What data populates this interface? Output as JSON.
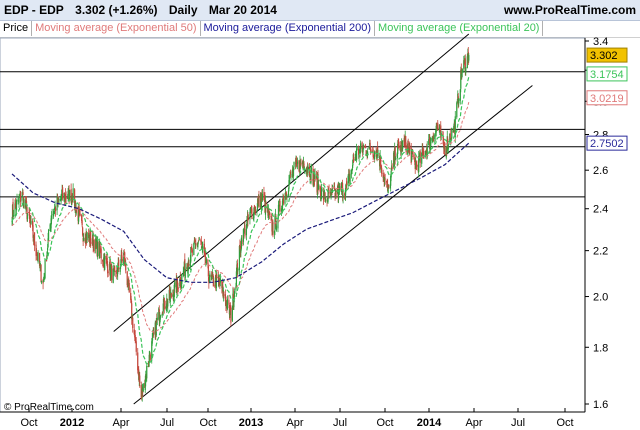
{
  "header": {
    "symbol": "EDP - EDP",
    "last": "3.302 (+1.26%)",
    "period": "Daily",
    "date": "Mar 20 2014",
    "brand": "www.ProRealTime.com"
  },
  "legend": {
    "price": "Price",
    "ema50": "Moving average (Exponential 50)",
    "ema200": "Moving average (Exponential 200)",
    "ema20": "Moving average (Exponential 20)"
  },
  "footer": {
    "credit": "© ProRealTime.com"
  },
  "colors": {
    "up": "#2e9e3a",
    "down": "#c4463a",
    "ema20": "#3cc45a",
    "ema50": "#e07a7a",
    "ema200": "#1a1a7a",
    "last_badge": "#f2c200",
    "ema20_badge": "#3cc45a",
    "ema50_badge": "#e07a7a",
    "ema200_badge": "#2a2a9a"
  },
  "chart_data": {
    "type": "candlestick",
    "x_ticks": [
      "Oct",
      "2012",
      "Apr",
      "Jul",
      "Oct",
      "2013",
      "Apr",
      "Jul",
      "Oct",
      "2014",
      "Apr",
      "Jul",
      "Oct"
    ],
    "y_ticks": [
      1.6,
      1.8,
      2.0,
      2.2,
      2.4,
      2.6,
      2.8,
      3.0,
      3.2,
      3.4
    ],
    "ylim": [
      1.55,
      3.45
    ],
    "y_scale": "log",
    "price_path": [
      [
        "2011-09-20",
        2.38
      ],
      [
        "2011-10-10",
        2.47
      ],
      [
        "2011-10-31",
        2.28
      ],
      [
        "2011-11-21",
        2.05
      ],
      [
        "2011-12-08",
        2.38
      ],
      [
        "2011-12-29",
        2.46
      ],
      [
        "2012-01-19",
        2.47
      ],
      [
        "2012-02-09",
        2.28
      ],
      [
        "2012-03-01",
        2.24
      ],
      [
        "2012-03-22",
        2.16
      ],
      [
        "2012-04-12",
        2.08
      ],
      [
        "2012-04-30",
        2.18
      ],
      [
        "2012-05-21",
        1.85
      ],
      [
        "2012-06-04",
        1.62
      ],
      [
        "2012-06-22",
        1.78
      ],
      [
        "2012-07-12",
        1.95
      ],
      [
        "2012-08-02",
        2.0
      ],
      [
        "2012-08-23",
        2.08
      ],
      [
        "2012-09-10",
        2.18
      ],
      [
        "2012-09-28",
        2.25
      ],
      [
        "2012-10-19",
        2.07
      ],
      [
        "2012-11-09",
        2.05
      ],
      [
        "2012-11-30",
        1.92
      ],
      [
        "2012-12-21",
        2.25
      ],
      [
        "2013-01-10",
        2.38
      ],
      [
        "2013-02-01",
        2.45
      ],
      [
        "2013-02-22",
        2.3
      ],
      [
        "2013-03-14",
        2.45
      ],
      [
        "2013-04-04",
        2.6
      ],
      [
        "2013-04-25",
        2.65
      ],
      [
        "2013-05-16",
        2.55
      ],
      [
        "2013-06-06",
        2.45
      ],
      [
        "2013-06-27",
        2.48
      ],
      [
        "2013-07-18",
        2.5
      ],
      [
        "2013-08-08",
        2.7
      ],
      [
        "2013-08-29",
        2.72
      ],
      [
        "2013-09-19",
        2.7
      ],
      [
        "2013-10-10",
        2.48
      ],
      [
        "2013-10-24",
        2.7
      ],
      [
        "2013-11-14",
        2.75
      ],
      [
        "2013-12-05",
        2.62
      ],
      [
        "2013-12-26",
        2.72
      ],
      [
        "2014-01-16",
        2.85
      ],
      [
        "2014-01-30",
        2.72
      ],
      [
        "2014-02-20",
        2.85
      ],
      [
        "2014-03-06",
        3.2
      ],
      [
        "2014-03-20",
        3.302
      ]
    ],
    "ema200_path": [
      [
        "2011-09-20",
        2.58
      ],
      [
        "2011-11-01",
        2.48
      ],
      [
        "2011-12-15",
        2.43
      ],
      [
        "2012-02-01",
        2.4
      ],
      [
        "2012-03-15",
        2.35
      ],
      [
        "2012-04-30",
        2.29
      ],
      [
        "2012-06-10",
        2.16
      ],
      [
        "2012-07-25",
        2.08
      ],
      [
        "2012-09-10",
        2.06
      ],
      [
        "2012-10-25",
        2.06
      ],
      [
        "2012-12-10",
        2.08
      ],
      [
        "2013-01-31",
        2.15
      ],
      [
        "2013-03-15",
        2.23
      ],
      [
        "2013-04-30",
        2.3
      ],
      [
        "2013-06-15",
        2.34
      ],
      [
        "2013-07-31",
        2.38
      ],
      [
        "2013-09-15",
        2.44
      ],
      [
        "2013-10-31",
        2.5
      ],
      [
        "2013-12-15",
        2.56
      ],
      [
        "2014-01-31",
        2.63
      ],
      [
        "2014-03-20",
        2.7502
      ]
    ],
    "series": [
      {
        "name": "Moving average (Exponential 20)",
        "last": 3.1754
      },
      {
        "name": "Moving average (Exponential 50)",
        "last": 3.0219
      },
      {
        "name": "Moving average (Exponential 200)",
        "last": 2.7502
      }
    ],
    "last_price": 3.302,
    "horizontal_levels": [
      3.19,
      2.83,
      2.73,
      2.46
    ],
    "trend_channel": {
      "upper": [
        [
          "2012-04-10",
          1.86
        ],
        [
          "2014-03-20",
          3.45
        ]
      ],
      "lower": [
        [
          "2012-05-20",
          1.6
        ],
        [
          "2014-07-25",
          3.1
        ]
      ]
    },
    "grid": false,
    "legend_position": "top-left"
  }
}
